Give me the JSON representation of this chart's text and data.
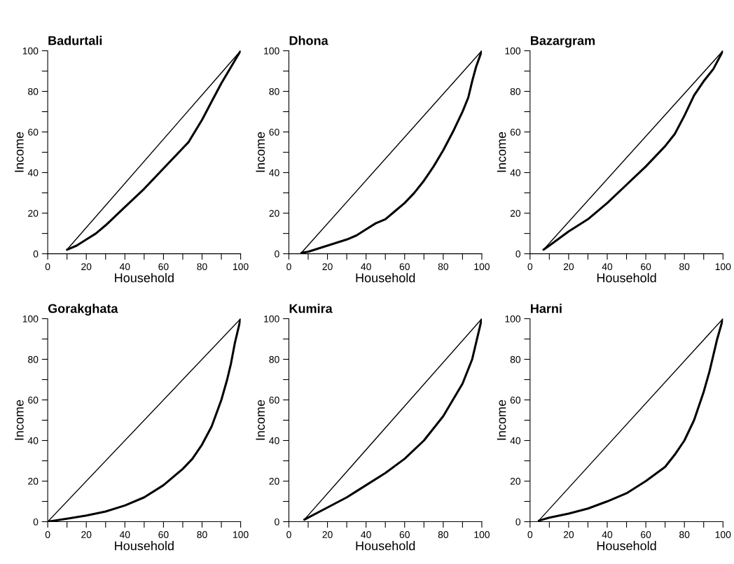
{
  "chart_data": [
    {
      "type": "line",
      "title": "Badurtali",
      "xlabel": "Household",
      "ylabel": "Income",
      "xlim": [
        0,
        100
      ],
      "ylim": [
        0,
        100
      ],
      "xticks": [
        0,
        {
          "value": 10,
          "label": null
        },
        20,
        {
          "value": 30,
          "label": null
        },
        40,
        {
          "value": 50,
          "label": null
        },
        60,
        {
          "value": 70,
          "label": null
        },
        80,
        {
          "value": 90,
          "label": null
        },
        100
      ],
      "yticks": [
        0,
        {
          "value": 10,
          "label": null
        },
        20,
        {
          "value": 30,
          "label": null
        },
        40,
        {
          "value": 50,
          "label": null
        },
        60,
        {
          "value": 70,
          "label": null
        },
        80,
        {
          "value": 90,
          "label": null
        },
        100
      ],
      "grid": false,
      "series": [
        {
          "color": "#000000",
          "x": [
            10,
            15,
            20,
            25,
            30,
            40,
            50,
            60,
            70,
            73,
            80,
            85,
            90,
            95,
            100
          ],
          "values": [
            2,
            4,
            7,
            10,
            14,
            23,
            32,
            42,
            52,
            55,
            66,
            75,
            84,
            92,
            100
          ]
        },
        {
          "color": "#000000",
          "x": [
            10,
            100
          ],
          "values": [
            2,
            100
          ]
        }
      ]
    },
    {
      "type": "line",
      "title": "Dhona",
      "xlabel": "Household",
      "ylabel": "Income",
      "xlim": [
        0,
        100
      ],
      "ylim": [
        0,
        100
      ],
      "xticks": [
        0,
        {
          "value": 10,
          "label": null
        },
        20,
        {
          "value": 30,
          "label": null
        },
        40,
        {
          "value": 50,
          "label": null
        },
        60,
        {
          "value": 70,
          "label": null
        },
        80,
        {
          "value": 90,
          "label": null
        },
        100
      ],
      "yticks": [
        0,
        {
          "value": 10,
          "label": null
        },
        20,
        {
          "value": 30,
          "label": null
        },
        40,
        {
          "value": 50,
          "label": null
        },
        60,
        {
          "value": 70,
          "label": null
        },
        80,
        {
          "value": 90,
          "label": null
        },
        100
      ],
      "grid": false,
      "series": [
        {
          "color": "#000000",
          "x": [
            6.5,
            10,
            20,
            30,
            35,
            40,
            45,
            50,
            55,
            60,
            65,
            70,
            75,
            80,
            85,
            90,
            93,
            95,
            97,
            100
          ],
          "values": [
            0.5,
            1,
            4,
            7,
            9,
            12,
            15,
            17,
            21,
            25,
            30,
            36,
            43,
            51,
            60,
            70,
            77,
            85,
            92,
            100
          ]
        },
        {
          "color": "#000000",
          "x": [
            6.5,
            100
          ],
          "values": [
            0.5,
            100
          ]
        }
      ]
    },
    {
      "type": "line",
      "title": "Bazargram",
      "xlabel": "Household",
      "ylabel": "Income",
      "xlim": [
        0,
        100
      ],
      "ylim": [
        0,
        100
      ],
      "xticks": [
        0,
        {
          "value": 10,
          "label": null
        },
        20,
        {
          "value": 30,
          "label": null
        },
        40,
        {
          "value": 50,
          "label": null
        },
        60,
        {
          "value": 70,
          "label": null
        },
        80,
        {
          "value": 90,
          "label": null
        },
        100
      ],
      "yticks": [
        0,
        {
          "value": 10,
          "label": null
        },
        20,
        {
          "value": 30,
          "label": null
        },
        40,
        {
          "value": 50,
          "label": null
        },
        60,
        {
          "value": 70,
          "label": null
        },
        80,
        {
          "value": 90,
          "label": null
        },
        100
      ],
      "grid": false,
      "series": [
        {
          "color": "#000000",
          "x": [
            7,
            10,
            20,
            30,
            40,
            50,
            60,
            70,
            75,
            80,
            85,
            90,
            95,
            100
          ],
          "values": [
            2,
            4,
            11,
            17,
            25,
            34,
            43,
            53,
            59,
            68,
            78,
            85,
            91,
            100
          ]
        },
        {
          "color": "#000000",
          "x": [
            7,
            100
          ],
          "values": [
            2,
            100
          ]
        }
      ]
    },
    {
      "type": "line",
      "title": "Gorakghata",
      "xlabel": "Household",
      "ylabel": "Income",
      "xlim": [
        0,
        100
      ],
      "ylim": [
        0,
        100
      ],
      "xticks": [
        0,
        {
          "value": 10,
          "label": null
        },
        20,
        {
          "value": 30,
          "label": null
        },
        40,
        {
          "value": 50,
          "label": null
        },
        60,
        {
          "value": 70,
          "label": null
        },
        80,
        {
          "value": 90,
          "label": null
        },
        100
      ],
      "yticks": [
        0,
        {
          "value": 10,
          "label": null
        },
        20,
        {
          "value": 30,
          "label": null
        },
        40,
        {
          "value": 50,
          "label": null
        },
        60,
        {
          "value": 70,
          "label": null
        },
        80,
        {
          "value": 90,
          "label": null
        },
        100
      ],
      "grid": false,
      "series": [
        {
          "color": "#000000",
          "x": [
            0,
            10,
            20,
            30,
            40,
            50,
            60,
            70,
            75,
            80,
            85,
            90,
            93,
            95,
            97,
            100
          ],
          "values": [
            0,
            1.5,
            3,
            5,
            8,
            12,
            18,
            26,
            31,
            38,
            47,
            60,
            70,
            78,
            88,
            100
          ]
        },
        {
          "color": "#000000",
          "x": [
            0,
            100
          ],
          "values": [
            0,
            100
          ]
        }
      ]
    },
    {
      "type": "line",
      "title": "Kumira",
      "xlabel": "Household",
      "ylabel": "Income",
      "xlim": [
        0,
        100
      ],
      "ylim": [
        0,
        100
      ],
      "xticks": [
        0,
        {
          "value": 10,
          "label": null
        },
        20,
        {
          "value": 30,
          "label": null
        },
        40,
        {
          "value": 50,
          "label": null
        },
        60,
        {
          "value": 70,
          "label": null
        },
        80,
        {
          "value": 90,
          "label": null
        },
        100
      ],
      "yticks": [
        0,
        {
          "value": 10,
          "label": null
        },
        20,
        {
          "value": 30,
          "label": null
        },
        40,
        {
          "value": 50,
          "label": null
        },
        60,
        {
          "value": 70,
          "label": null
        },
        80,
        {
          "value": 90,
          "label": null
        },
        100
      ],
      "grid": false,
      "series": [
        {
          "color": "#000000",
          "x": [
            8,
            20,
            30,
            40,
            50,
            60,
            70,
            80,
            90,
            95,
            100
          ],
          "values": [
            1,
            7,
            12,
            18,
            24,
            31,
            40,
            52,
            68,
            80,
            100
          ]
        },
        {
          "color": "#000000",
          "x": [
            8,
            100
          ],
          "values": [
            1,
            100
          ]
        }
      ]
    },
    {
      "type": "line",
      "title": "Harni",
      "xlabel": "Household",
      "ylabel": "Income",
      "xlim": [
        0,
        100
      ],
      "ylim": [
        0,
        100
      ],
      "xticks": [
        0,
        {
          "value": 10,
          "label": null
        },
        20,
        {
          "value": 30,
          "label": null
        },
        40,
        {
          "value": 50,
          "label": null
        },
        60,
        {
          "value": 70,
          "label": null
        },
        80,
        {
          "value": 90,
          "label": null
        },
        100
      ],
      "yticks": [
        0,
        {
          "value": 10,
          "label": null
        },
        20,
        {
          "value": 30,
          "label": null
        },
        40,
        {
          "value": 50,
          "label": null
        },
        60,
        {
          "value": 70,
          "label": null
        },
        80,
        {
          "value": 90,
          "label": null
        },
        100
      ],
      "grid": false,
      "series": [
        {
          "color": "#000000",
          "x": [
            4.5,
            10,
            20,
            30,
            40,
            50,
            60,
            70,
            75,
            80,
            85,
            90,
            93,
            95,
            97,
            100
          ],
          "values": [
            0.5,
            2,
            4,
            6.5,
            10,
            14,
            20,
            27,
            33,
            40,
            50,
            64,
            74,
            82,
            90,
            100
          ]
        },
        {
          "color": "#000000",
          "x": [
            4.5,
            100
          ],
          "values": [
            0.5,
            100
          ]
        }
      ]
    }
  ]
}
